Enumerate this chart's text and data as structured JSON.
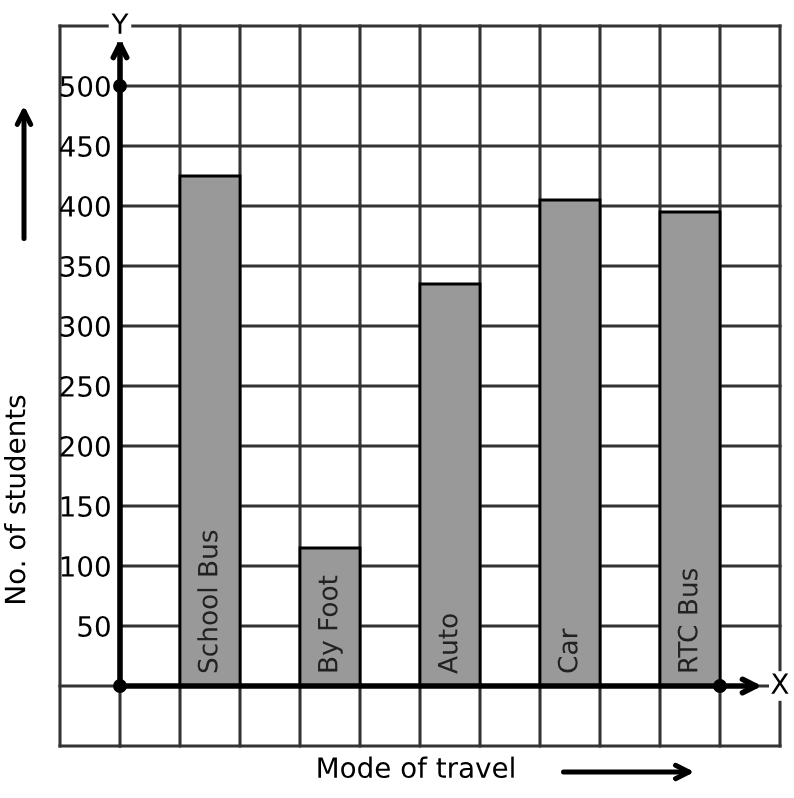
{
  "chart_data": {
    "type": "bar",
    "xlabel": "Mode of travel",
    "ylabel": "No. of students",
    "categories": [
      "School Bus",
      "By Foot",
      "Auto",
      "Car",
      "RTC Bus"
    ],
    "values": [
      425,
      115,
      335,
      405,
      395
    ],
    "color": "#999999",
    "ylim": [
      -50,
      550
    ],
    "yticks": [
      50,
      100,
      150,
      200,
      250,
      300,
      350,
      400,
      450,
      500
    ],
    "grid": true,
    "legend": false,
    "annotations": [
      "Y",
      "X"
    ]
  }
}
